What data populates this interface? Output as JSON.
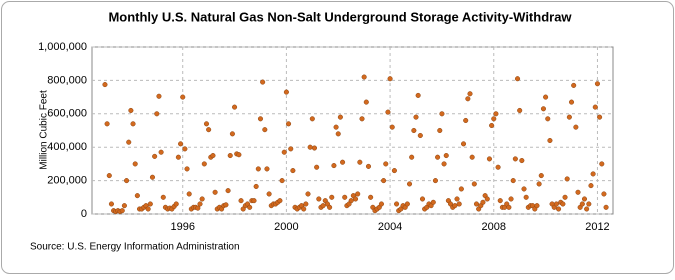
{
  "chart_data": {
    "type": "scatter",
    "title": "Monthly U.S. Natural Gas Non-Salt Underground Storage Activity-Withdraw",
    "y_label": "Million Cubic Feet",
    "source": "Source: U.S. Energy Information Administration",
    "color": "#d2691e",
    "grid": true,
    "xlim": [
      1992.5,
      2012.6
    ],
    "xticks": [
      1996,
      2000,
      2004,
      2008,
      2012
    ],
    "ylim": [
      0,
      1000000
    ],
    "yticks": [
      0,
      {
        "value": 200000,
        "label": "200,000"
      },
      {
        "value": 400000,
        "label": "400,000"
      },
      {
        "value": 600000,
        "label": "600,000"
      },
      {
        "value": 800000,
        "label": "800,000"
      },
      {
        "value": 1000000,
        "label": "1,000,000"
      }
    ],
    "x": [
      1993,
      1993.083,
      1993.167,
      1993.25,
      1993.333,
      1993.417,
      1993.5,
      1993.583,
      1993.667,
      1993.75,
      1993.833,
      1993.917,
      1994,
      1994.083,
      1994.167,
      1994.25,
      1994.333,
      1994.417,
      1994.5,
      1994.583,
      1994.667,
      1994.75,
      1994.833,
      1994.917,
      1995,
      1995.083,
      1995.167,
      1995.25,
      1995.333,
      1995.417,
      1995.5,
      1995.583,
      1995.667,
      1995.75,
      1995.833,
      1995.917,
      1996,
      1996.083,
      1996.167,
      1996.25,
      1996.333,
      1996.417,
      1996.5,
      1996.583,
      1996.667,
      1996.75,
      1996.833,
      1996.917,
      1997,
      1997.083,
      1997.167,
      1997.25,
      1997.333,
      1997.417,
      1997.5,
      1997.583,
      1997.667,
      1997.75,
      1997.833,
      1997.917,
      1998,
      1998.083,
      1998.167,
      1998.25,
      1998.333,
      1998.417,
      1998.5,
      1998.583,
      1998.667,
      1998.75,
      1998.833,
      1998.917,
      1999,
      1999.083,
      1999.167,
      1999.25,
      1999.333,
      1999.417,
      1999.5,
      1999.583,
      1999.667,
      1999.75,
      1999.833,
      1999.917,
      2000,
      2000.083,
      2000.167,
      2000.25,
      2000.333,
      2000.417,
      2000.5,
      2000.583,
      2000.667,
      2000.75,
      2000.833,
      2000.917,
      2001,
      2001.083,
      2001.167,
      2001.25,
      2001.333,
      2001.417,
      2001.5,
      2001.583,
      2001.667,
      2001.75,
      2001.833,
      2001.917,
      2002,
      2002.083,
      2002.167,
      2002.25,
      2002.333,
      2002.417,
      2002.5,
      2002.583,
      2002.667,
      2002.75,
      2002.833,
      2002.917,
      2003,
      2003.083,
      2003.167,
      2003.25,
      2003.333,
      2003.417,
      2003.5,
      2003.583,
      2003.667,
      2003.75,
      2003.833,
      2003.917,
      2004,
      2004.083,
      2004.167,
      2004.25,
      2004.333,
      2004.417,
      2004.5,
      2004.583,
      2004.667,
      2004.75,
      2004.833,
      2004.917,
      2005,
      2005.083,
      2005.167,
      2005.25,
      2005.333,
      2005.417,
      2005.5,
      2005.583,
      2005.667,
      2005.75,
      2005.833,
      2005.917,
      2006,
      2006.083,
      2006.167,
      2006.25,
      2006.333,
      2006.417,
      2006.5,
      2006.583,
      2006.667,
      2006.75,
      2006.833,
      2006.917,
      2007,
      2007.083,
      2007.167,
      2007.25,
      2007.333,
      2007.417,
      2007.5,
      2007.583,
      2007.667,
      2007.75,
      2007.833,
      2007.917,
      2008,
      2008.083,
      2008.167,
      2008.25,
      2008.333,
      2008.417,
      2008.5,
      2008.583,
      2008.667,
      2008.75,
      2008.833,
      2008.917,
      2009,
      2009.083,
      2009.167,
      2009.25,
      2009.333,
      2009.417,
      2009.5,
      2009.583,
      2009.667,
      2009.75,
      2009.833,
      2009.917,
      2010,
      2010.083,
      2010.167,
      2010.25,
      2010.333,
      2010.417,
      2010.5,
      2010.583,
      2010.667,
      2010.75,
      2010.833,
      2010.917,
      2011,
      2011.083,
      2011.167,
      2011.25,
      2011.333,
      2011.417,
      2011.5,
      2011.583,
      2011.667,
      2011.75,
      2011.833,
      2011.917,
      2012,
      2012.083,
      2012.167,
      2012.25,
      2012.333
    ],
    "values": [
      775000,
      540000,
      230000,
      60000,
      20000,
      15000,
      20000,
      15000,
      20000,
      50000,
      200000,
      430000,
      620000,
      540000,
      300000,
      110000,
      30000,
      30000,
      40000,
      50000,
      30000,
      60000,
      220000,
      345000,
      600000,
      705000,
      370000,
      100000,
      40000,
      30000,
      35000,
      30000,
      45000,
      60000,
      340000,
      420000,
      700000,
      390000,
      270000,
      120000,
      30000,
      40000,
      40000,
      35000,
      60000,
      90000,
      300000,
      540000,
      505000,
      340000,
      350000,
      130000,
      30000,
      40000,
      30000,
      50000,
      55000,
      140000,
      350000,
      480000,
      640000,
      360000,
      355000,
      80000,
      30000,
      50000,
      60000,
      40000,
      80000,
      80000,
      165000,
      270000,
      570000,
      790000,
      505000,
      270000,
      120000,
      50000,
      60000,
      60000,
      70000,
      80000,
      200000,
      370000,
      730000,
      540000,
      390000,
      260000,
      40000,
      30000,
      40000,
      50000,
      30000,
      60000,
      120000,
      400000,
      570000,
      395000,
      280000,
      90000,
      40000,
      50000,
      80000,
      60000,
      40000,
      100000,
      290000,
      520000,
      480000,
      580000,
      310000,
      100000,
      50000,
      60000,
      80000,
      110000,
      90000,
      120000,
      310000,
      570000,
      820000,
      670000,
      285000,
      100000,
      40000,
      20000,
      30000,
      40000,
      60000,
      200000,
      300000,
      610000,
      810000,
      520000,
      260000,
      60000,
      20000,
      30000,
      50000,
      40000,
      60000,
      180000,
      340000,
      500000,
      580000,
      710000,
      470000,
      90000,
      30000,
      40000,
      60000,
      50000,
      70000,
      200000,
      340000,
      500000,
      600000,
      300000,
      350000,
      80000,
      60000,
      40000,
      50000,
      90000,
      60000,
      150000,
      420000,
      560000,
      690000,
      720000,
      340000,
      180000,
      60000,
      30000,
      50000,
      70000,
      110000,
      90000,
      330000,
      530000,
      570000,
      600000,
      280000,
      80000,
      40000,
      40000,
      60000,
      40000,
      90000,
      200000,
      330000,
      810000,
      620000,
      320000,
      150000,
      100000,
      40000,
      50000,
      50000,
      30000,
      50000,
      180000,
      230000,
      630000,
      700000,
      570000,
      440000,
      60000,
      40000,
      60000,
      30000,
      70000,
      60000,
      100000,
      210000,
      580000,
      670000,
      770000,
      520000,
      130000,
      40000,
      60000,
      90000,
      30000,
      60000,
      170000,
      240000,
      640000,
      780000,
      580000,
      300000,
      120000,
      40000
    ]
  }
}
